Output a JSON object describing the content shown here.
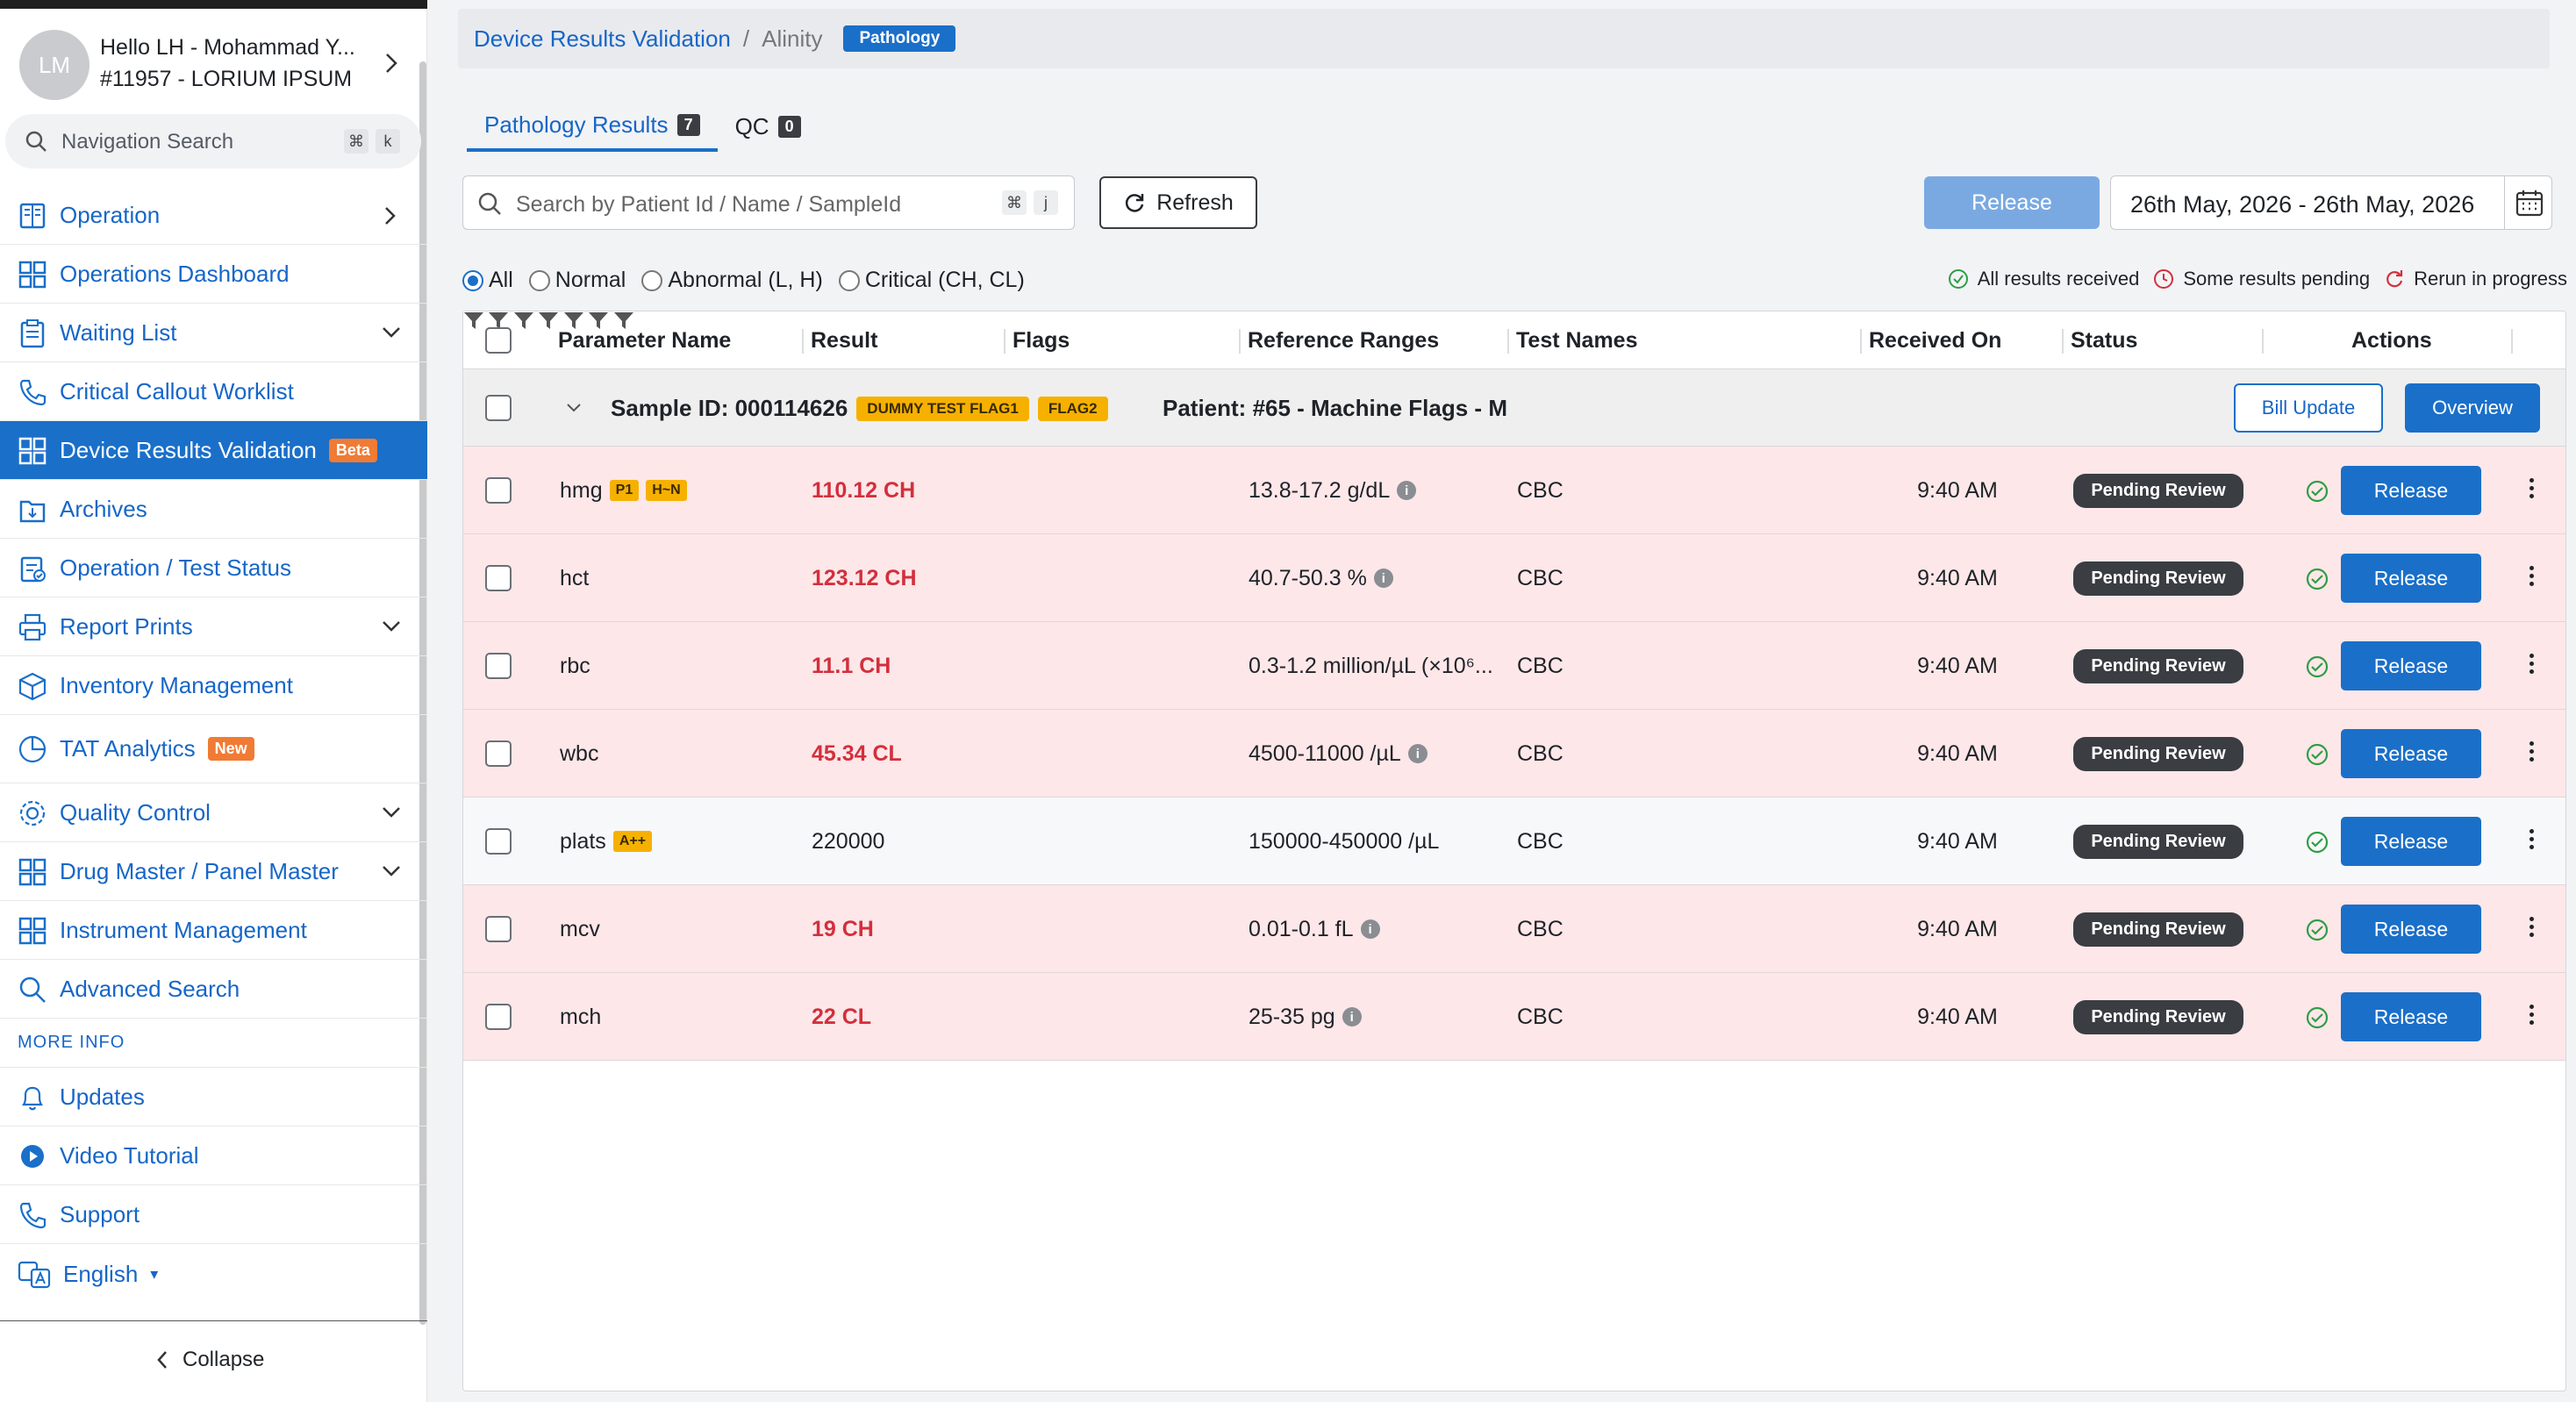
{
  "user": {
    "initials": "LM",
    "greeting": "Hello LH - Mohammad Y...",
    "org": "#11957 - LORIUM IPSUM"
  },
  "nav_search": {
    "placeholder": "Navigation Search",
    "k1": "⌘",
    "k2": "k"
  },
  "sidebar": {
    "items": [
      {
        "label": "Operation",
        "icon": "book-icon"
      },
      {
        "label": "Operations Dashboard",
        "icon": "grid-icon"
      },
      {
        "label": "Waiting List",
        "icon": "clipboard-icon"
      },
      {
        "label": "Critical Callout Worklist",
        "icon": "phone-icon"
      },
      {
        "label": "Device Results Validation",
        "icon": "grid-icon",
        "badge": "Beta"
      },
      {
        "label": "Archives",
        "icon": "archive-icon"
      },
      {
        "label": "Operation / Test Status",
        "icon": "clipboard-check-icon"
      },
      {
        "label": "Report Prints",
        "icon": "printer-icon"
      },
      {
        "label": "Inventory Management",
        "icon": "box-icon"
      },
      {
        "label": "TAT Analytics",
        "icon": "pie-icon",
        "badge": "New"
      },
      {
        "label": "Quality Control",
        "icon": "gear-icon"
      },
      {
        "label": "Drug Master / Panel Master",
        "icon": "grid-icon"
      },
      {
        "label": "Instrument Management",
        "icon": "grid-icon"
      },
      {
        "label": "Advanced Search",
        "icon": "search-icon"
      }
    ],
    "more_info": "MORE INFO",
    "more_items": [
      {
        "label": "Updates",
        "icon": "bell-icon"
      },
      {
        "label": "Video Tutorial",
        "icon": "play-icon"
      },
      {
        "label": "Support",
        "icon": "phone-icon"
      }
    ],
    "language": "English",
    "collapse": "Collapse"
  },
  "breadcrumb": {
    "link": "Device Results Validation",
    "sep": "/",
    "current": "Alinity",
    "pill": "Pathology"
  },
  "tabs": [
    {
      "label": "Pathology Results",
      "count": "7"
    },
    {
      "label": "QC",
      "count": "0"
    }
  ],
  "search": {
    "placeholder": "Search by Patient Id / Name / SampleId",
    "k1": "⌘",
    "k2": "j"
  },
  "refresh_label": "Refresh",
  "release_label": "Release",
  "date_range": "26th May, 2026 - 26th May, 2026",
  "filters": [
    "All",
    "Normal",
    "Abnormal (L, H)",
    "Critical (CH, CL)"
  ],
  "legend": [
    "All results received",
    "Some results pending",
    "Rerun in progress"
  ],
  "columns": [
    "Parameter Name",
    "Result",
    "Flags",
    "Reference Ranges",
    "Test Names",
    "Received On",
    "Status",
    "Actions"
  ],
  "group": {
    "sample": "Sample ID: 000114626",
    "flags": [
      "DUMMY TEST FLAG1",
      "FLAG2"
    ],
    "patient": "Patient: #65 - Machine Flags - M",
    "bill_update": "Bill Update",
    "overview": "Overview"
  },
  "rows": [
    {
      "param": "hmg",
      "tags": [
        "P1",
        "H~N"
      ],
      "result": "110.12 CH",
      "critical": true,
      "range": "13.8-17.2 g/dL",
      "info": true,
      "test": "CBC",
      "received": "9:40 AM",
      "status": "Pending Review",
      "action": "Release"
    },
    {
      "param": "hct",
      "tags": [],
      "result": "123.12 CH",
      "critical": true,
      "range": "40.7-50.3 %",
      "info": true,
      "test": "CBC",
      "received": "9:40 AM",
      "status": "Pending Review",
      "action": "Release"
    },
    {
      "param": "rbc",
      "tags": [],
      "result": "11.1 CH",
      "critical": true,
      "range": "0.3-1.2 million/µL (×10⁶...",
      "info": false,
      "test": "CBC",
      "received": "9:40 AM",
      "status": "Pending Review",
      "action": "Release"
    },
    {
      "param": "wbc",
      "tags": [],
      "result": "45.34 CL",
      "critical": true,
      "range": "4500-11000 /µL",
      "info": true,
      "test": "CBC",
      "received": "9:40 AM",
      "status": "Pending Review",
      "action": "Release"
    },
    {
      "param": "plats",
      "tags": [
        "A++"
      ],
      "result": "220000",
      "critical": false,
      "range": "150000-450000 /µL",
      "info": false,
      "test": "CBC",
      "received": "9:40 AM",
      "status": "Pending Review",
      "action": "Release"
    },
    {
      "param": "mcv",
      "tags": [],
      "result": "19 CH",
      "critical": true,
      "range": "0.01-0.1 fL",
      "info": true,
      "test": "CBC",
      "received": "9:40 AM",
      "status": "Pending Review",
      "action": "Release"
    },
    {
      "param": "mch",
      "tags": [],
      "result": "22 CL",
      "critical": true,
      "range": "25-35 pg",
      "info": true,
      "test": "CBC",
      "received": "9:40 AM",
      "status": "Pending Review",
      "action": "Release"
    }
  ],
  "colors": {
    "primary": "#1a6fc9",
    "critical_text": "#d32f3c",
    "critical_bg": "#fde7e9",
    "badge_orange": "#f07b35",
    "flag_yellow": "#f6b100"
  }
}
